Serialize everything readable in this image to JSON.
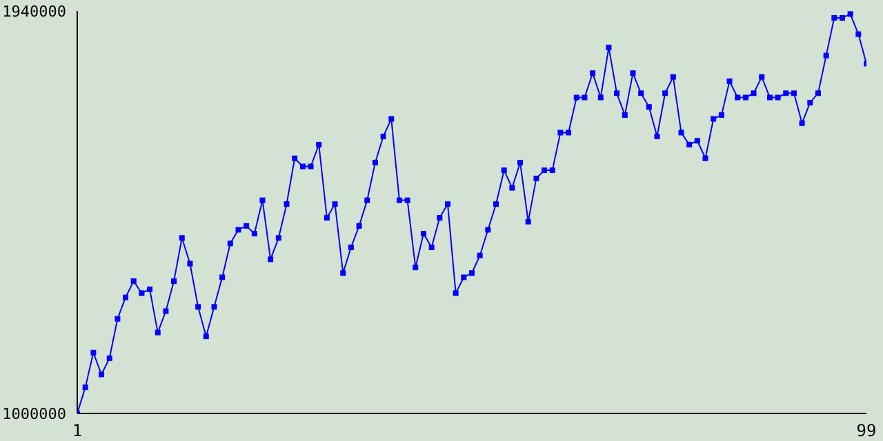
{
  "chart_data": {
    "type": "line",
    "x": [
      1,
      2,
      3,
      4,
      5,
      6,
      7,
      8,
      9,
      10,
      11,
      12,
      13,
      14,
      15,
      16,
      17,
      18,
      19,
      20,
      21,
      22,
      23,
      24,
      25,
      26,
      27,
      28,
      29,
      30,
      31,
      32,
      33,
      34,
      35,
      36,
      37,
      38,
      39,
      40,
      41,
      42,
      43,
      44,
      45,
      46,
      47,
      48,
      49,
      50,
      51,
      52,
      53,
      54,
      55,
      56,
      57,
      58,
      59,
      60,
      61,
      62,
      63,
      64,
      65,
      66,
      67,
      68,
      69,
      70,
      71,
      72,
      73,
      74,
      75,
      76,
      77,
      78,
      79,
      80,
      81,
      82,
      83,
      84,
      85,
      86,
      87,
      88,
      89,
      90,
      91,
      92,
      93,
      94,
      95,
      96,
      97,
      98,
      99
    ],
    "series": [
      {
        "color": "#0000ff",
        "values": [
          1000000,
          1061000,
          1142000,
          1091000,
          1129000,
          1221000,
          1271000,
          1309000,
          1281000,
          1290000,
          1189000,
          1239000,
          1309000,
          1410000,
          1350000,
          1249000,
          1180000,
          1249000,
          1318000,
          1397000,
          1429000,
          1438000,
          1420000,
          1498000,
          1360000,
          1410000,
          1489000,
          1596000,
          1577000,
          1577000,
          1628000,
          1457000,
          1489000,
          1328000,
          1388000,
          1438000,
          1498000,
          1586000,
          1647000,
          1688000,
          1498000,
          1498000,
          1341000,
          1420000,
          1388000,
          1457000,
          1489000,
          1281000,
          1318000,
          1328000,
          1369000,
          1429000,
          1489000,
          1568000,
          1527000,
          1586000,
          1448000,
          1549000,
          1568000,
          1568000,
          1656000,
          1656000,
          1738000,
          1738000,
          1795000,
          1738000,
          1855000,
          1748000,
          1697000,
          1795000,
          1748000,
          1716000,
          1647000,
          1748000,
          1786000,
          1656000,
          1628000,
          1637000,
          1596000,
          1688000,
          1697000,
          1776000,
          1738000,
          1738000,
          1748000,
          1786000,
          1738000,
          1738000,
          1748000,
          1748000,
          1678000,
          1726000,
          1748000,
          1836000,
          1924000,
          1924000,
          1933000,
          1886000,
          1817000
        ]
      }
    ],
    "xlim": [
      1,
      99
    ],
    "xticks": [
      1,
      99
    ],
    "ylim": [
      1000000,
      1940000
    ],
    "yticks": [
      1000000,
      1940000
    ],
    "grid": false,
    "legend": false,
    "marker": "square",
    "line_style": "solid"
  }
}
